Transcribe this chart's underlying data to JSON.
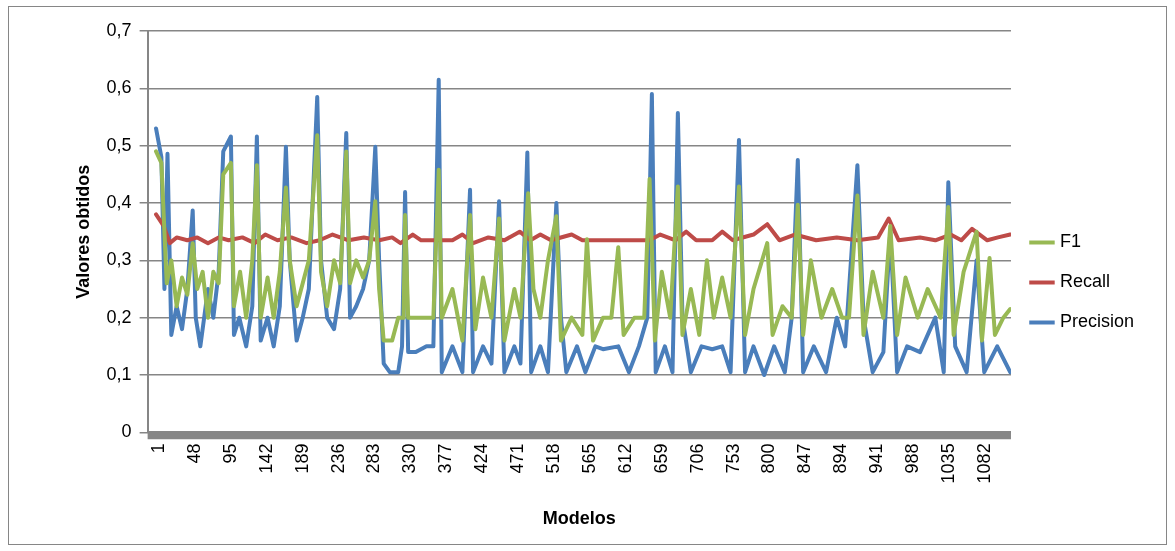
{
  "chart_data": {
    "type": "line",
    "xlabel": "Modelos",
    "ylabel": "Valores obtidos",
    "xlim": [
      -10,
      1120
    ],
    "xticks": [
      1,
      48,
      95,
      142,
      189,
      236,
      283,
      330,
      377,
      424,
      471,
      518,
      565,
      612,
      659,
      706,
      753,
      800,
      847,
      894,
      941,
      988,
      1035,
      1082
    ],
    "ylim": [
      0,
      0.7
    ],
    "yticks": [
      {
        "value": 0,
        "label": "0"
      },
      {
        "value": 0.1,
        "label": "0,1"
      },
      {
        "value": 0.2,
        "label": "0,2"
      },
      {
        "value": 0.3,
        "label": "0,3"
      },
      {
        "value": 0.4,
        "label": "0,4"
      },
      {
        "value": 0.5,
        "label": "0,5"
      },
      {
        "value": 0.6,
        "label": "0,6"
      },
      {
        "value": 0.7,
        "label": "0,7"
      }
    ],
    "grid": "y",
    "legend": "right",
    "marker": "none",
    "line_style": "solid",
    "series": [
      {
        "name": "Precision",
        "color": "#4a7ebb",
        "x": [
          1,
          8,
          12,
          16,
          21,
          28,
          35,
          42,
          49,
          53,
          59,
          69,
          76,
          83,
          89,
          99,
          103,
          110,
          119,
          127,
          133,
          138,
          147,
          155,
          163,
          171,
          176,
          185,
          193,
          201,
          212,
          217,
          225,
          234,
          242,
          250,
          255,
          263,
          272,
          280,
          288,
          293,
          299,
          307,
          318,
          323,
          327,
          331,
          341,
          355,
          364,
          371,
          375,
          389,
          402,
          412,
          416,
          429,
          440,
          450,
          457,
          470,
          478,
          487,
          492,
          504,
          514,
          525,
          531,
          538,
          552,
          563,
          576,
          586,
          606,
          620,
          633,
          644,
          650,
          655,
          667,
          677,
          684,
          690,
          701,
          715,
          729,
          742,
          753,
          764,
          772,
          783,
          797,
          810,
          824,
          833,
          841,
          848,
          862,
          878,
          892,
          903,
          919,
          927,
          939,
          953,
          962,
          971,
          984,
          1001,
          1021,
          1032,
          1038,
          1047,
          1062,
          1075,
          1085,
          1102,
          1119
        ],
        "values": [
          0.53,
          0.48,
          0.25,
          0.486,
          0.17,
          0.22,
          0.18,
          0.25,
          0.387,
          0.2,
          0.15,
          0.25,
          0.2,
          0.28,
          0.49,
          0.516,
          0.17,
          0.2,
          0.15,
          0.22,
          0.516,
          0.16,
          0.2,
          0.15,
          0.22,
          0.498,
          0.3,
          0.16,
          0.2,
          0.25,
          0.585,
          0.3,
          0.2,
          0.18,
          0.25,
          0.522,
          0.2,
          0.22,
          0.25,
          0.3,
          0.498,
          0.3,
          0.12,
          0.105,
          0.105,
          0.15,
          0.419,
          0.14,
          0.14,
          0.15,
          0.15,
          0.615,
          0.105,
          0.15,
          0.105,
          0.423,
          0.105,
          0.15,
          0.12,
          0.403,
          0.105,
          0.15,
          0.12,
          0.488,
          0.105,
          0.15,
          0.105,
          0.4,
          0.2,
          0.105,
          0.15,
          0.105,
          0.15,
          0.145,
          0.15,
          0.105,
          0.15,
          0.2,
          0.59,
          0.105,
          0.15,
          0.105,
          0.557,
          0.2,
          0.105,
          0.15,
          0.145,
          0.15,
          0.105,
          0.51,
          0.105,
          0.15,
          0.1,
          0.15,
          0.105,
          0.2,
          0.475,
          0.105,
          0.15,
          0.105,
          0.2,
          0.15,
          0.466,
          0.2,
          0.105,
          0.14,
          0.35,
          0.105,
          0.15,
          0.14,
          0.2,
          0.105,
          0.436,
          0.15,
          0.105,
          0.3,
          0.105,
          0.15,
          0.105
        ]
      },
      {
        "name": "Recall",
        "color": "#be4b48",
        "x": [
          1,
          11,
          19,
          28,
          42,
          55,
          69,
          83,
          96,
          114,
          130,
          144,
          160,
          178,
          198,
          215,
          232,
          253,
          273,
          293,
          310,
          321,
          337,
          348,
          389,
          402,
          416,
          436,
          457,
          477,
          491,
          504,
          518,
          545,
          559,
          586,
          606,
          647,
          661,
          681,
          695,
          708,
          729,
          742,
          756,
          783,
          801,
          817,
          837,
          865,
          892,
          919,
          946,
          960,
          973,
          1001,
          1021,
          1041,
          1055,
          1069,
          1089,
          1103,
          1119
        ],
        "values": [
          0.38,
          0.36,
          0.33,
          0.34,
          0.335,
          0.34,
          0.33,
          0.34,
          0.335,
          0.34,
          0.33,
          0.345,
          0.335,
          0.34,
          0.33,
          0.335,
          0.345,
          0.335,
          0.34,
          0.335,
          0.34,
          0.33,
          0.345,
          0.335,
          0.335,
          0.345,
          0.33,
          0.34,
          0.335,
          0.35,
          0.335,
          0.345,
          0.335,
          0.345,
          0.335,
          0.335,
          0.335,
          0.335,
          0.345,
          0.335,
          0.35,
          0.335,
          0.335,
          0.35,
          0.335,
          0.345,
          0.363,
          0.335,
          0.345,
          0.335,
          0.34,
          0.335,
          0.34,
          0.373,
          0.335,
          0.34,
          0.335,
          0.345,
          0.335,
          0.355,
          0.335,
          0.34,
          0.345
        ]
      },
      {
        "name": "F1",
        "color": "#98b954",
        "x": [
          1,
          8,
          15,
          21,
          28,
          35,
          42,
          49,
          55,
          62,
          69,
          76,
          83,
          89,
          99,
          103,
          111,
          119,
          127,
          133,
          138,
          147,
          155,
          163,
          171,
          176,
          185,
          193,
          201,
          212,
          217,
          225,
          234,
          242,
          250,
          255,
          263,
          272,
          280,
          288,
          293,
          299,
          310,
          318,
          325,
          327,
          331,
          348,
          364,
          371,
          375,
          389,
          402,
          412,
          419,
          429,
          440,
          450,
          457,
          470,
          478,
          488,
          495,
          504,
          514,
          525,
          531,
          545,
          559,
          565,
          573,
          586,
          597,
          606,
          613,
          627,
          640,
          647,
          654,
          663,
          674,
          684,
          690,
          701,
          712,
          722,
          731,
          742,
          753,
          764,
          772,
          783,
          801,
          808,
          821,
          833,
          841,
          848,
          858,
          872,
          886,
          899,
          908,
          919,
          927,
          939,
          953,
          962,
          971,
          982,
          998,
          1011,
          1028,
          1038,
          1045,
          1058,
          1075,
          1082,
          1092,
          1099,
          1110,
          1119
        ],
        "values": [
          0.49,
          0.47,
          0.26,
          0.3,
          0.22,
          0.27,
          0.24,
          0.33,
          0.25,
          0.28,
          0.2,
          0.28,
          0.26,
          0.45,
          0.47,
          0.22,
          0.28,
          0.2,
          0.3,
          0.466,
          0.2,
          0.27,
          0.2,
          0.28,
          0.427,
          0.3,
          0.22,
          0.26,
          0.3,
          0.518,
          0.28,
          0.22,
          0.3,
          0.26,
          0.49,
          0.26,
          0.3,
          0.27,
          0.3,
          0.403,
          0.25,
          0.16,
          0.16,
          0.2,
          0.2,
          0.379,
          0.2,
          0.2,
          0.2,
          0.458,
          0.2,
          0.25,
          0.16,
          0.379,
          0.18,
          0.27,
          0.2,
          0.373,
          0.16,
          0.25,
          0.2,
          0.417,
          0.25,
          0.2,
          0.3,
          0.377,
          0.16,
          0.2,
          0.17,
          0.337,
          0.16,
          0.2,
          0.2,
          0.323,
          0.17,
          0.2,
          0.2,
          0.442,
          0.16,
          0.28,
          0.2,
          0.429,
          0.17,
          0.25,
          0.17,
          0.3,
          0.2,
          0.27,
          0.2,
          0.429,
          0.17,
          0.25,
          0.33,
          0.17,
          0.22,
          0.2,
          0.397,
          0.17,
          0.3,
          0.2,
          0.25,
          0.2,
          0.2,
          0.413,
          0.17,
          0.28,
          0.2,
          0.36,
          0.17,
          0.27,
          0.2,
          0.25,
          0.2,
          0.393,
          0.17,
          0.28,
          0.35,
          0.16,
          0.304,
          0.17,
          0.2,
          0.215
        ]
      }
    ]
  }
}
